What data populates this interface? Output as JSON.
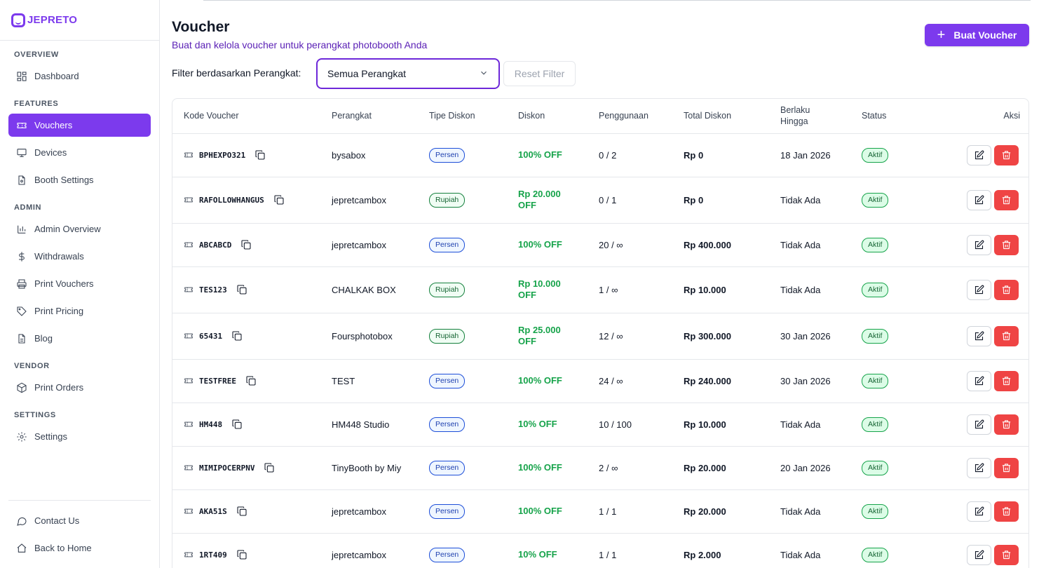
{
  "brand": {
    "name": "JEPRETO",
    "color": "#7c3aed"
  },
  "sidebar": {
    "sections": [
      {
        "title": "OVERVIEW",
        "items": [
          {
            "label": "Dashboard",
            "icon": "dashboard-icon"
          }
        ]
      },
      {
        "title": "FEATURES",
        "items": [
          {
            "label": "Vouchers",
            "icon": "ticket-icon",
            "active": true
          },
          {
            "label": "Devices",
            "icon": "monitor-icon"
          },
          {
            "label": "Booth Settings",
            "icon": "file-settings-icon"
          }
        ]
      },
      {
        "title": "ADMIN",
        "items": [
          {
            "label": "Admin Overview",
            "icon": "bar-chart-icon"
          },
          {
            "label": "Withdrawals",
            "icon": "dollar-icon"
          },
          {
            "label": "Print Vouchers",
            "icon": "printer-icon"
          },
          {
            "label": "Print Pricing",
            "icon": "tag-icon"
          },
          {
            "label": "Blog",
            "icon": "file-text-icon"
          }
        ]
      },
      {
        "title": "VENDOR",
        "items": [
          {
            "label": "Print Orders",
            "icon": "package-icon"
          }
        ]
      },
      {
        "title": "SETTINGS",
        "items": [
          {
            "label": "Settings",
            "icon": "gear-icon"
          }
        ]
      }
    ],
    "bottom": [
      {
        "label": "Contact Us",
        "icon": "chat-icon"
      },
      {
        "label": "Back to Home",
        "icon": "home-icon"
      }
    ]
  },
  "header": {
    "title": "Voucher",
    "subtitle": "Buat dan kelola voucher untuk perangkat photobooth Anda",
    "create_label": "Buat Voucher"
  },
  "filter": {
    "label": "Filter berdasarkan Perangkat:",
    "selected": "Semua Perangkat",
    "reset_label": "Reset Filter"
  },
  "table": {
    "columns": [
      "Kode Voucher",
      "Perangkat",
      "Tipe Diskon",
      "Diskon",
      "Penggunaan",
      "Total Diskon",
      "Berlaku Hingga",
      "Status",
      "Aksi"
    ],
    "rows": [
      {
        "code": "BPHEXPO321",
        "device": "bysabox",
        "type": "Persen",
        "discount": "100% OFF",
        "usage": "0 / 2",
        "total": "Rp 0",
        "valid": "18 Jan 2026",
        "status": "Aktif"
      },
      {
        "code": "RAFOLLOWHANGUS",
        "device": "jepretcambox",
        "type": "Rupiah",
        "discount": "Rp 20.000 OFF",
        "usage": "0 / 1",
        "total": "Rp 0",
        "valid": "Tidak Ada",
        "status": "Aktif"
      },
      {
        "code": "ABCABCD",
        "device": "jepretcambox",
        "type": "Persen",
        "discount": "100% OFF",
        "usage": "20 / ∞",
        "total": "Rp 400.000",
        "valid": "Tidak Ada",
        "status": "Aktif"
      },
      {
        "code": "TES123",
        "device": "CHALKAK BOX",
        "type": "Rupiah",
        "discount": "Rp 10.000 OFF",
        "usage": "1 / ∞",
        "total": "Rp 10.000",
        "valid": "Tidak Ada",
        "status": "Aktif"
      },
      {
        "code": "65431",
        "device": "Foursphotobox",
        "type": "Rupiah",
        "discount": "Rp 25.000 OFF",
        "usage": "12 / ∞",
        "total": "Rp 300.000",
        "valid": "30 Jan 2026",
        "status": "Aktif"
      },
      {
        "code": "TESTFREE",
        "device": "TEST",
        "type": "Persen",
        "discount": "100% OFF",
        "usage": "24 / ∞",
        "total": "Rp 240.000",
        "valid": "30 Jan 2026",
        "status": "Aktif"
      },
      {
        "code": "HM448",
        "device": "HM448 Studio",
        "type": "Persen",
        "discount": "10% OFF",
        "usage": "10 / 100",
        "total": "Rp 10.000",
        "valid": "Tidak Ada",
        "status": "Aktif"
      },
      {
        "code": "MIMIPOCERPNV",
        "device": "TinyBooth by Miy",
        "type": "Persen",
        "discount": "100% OFF",
        "usage": "2 / ∞",
        "total": "Rp 20.000",
        "valid": "20 Jan 2026",
        "status": "Aktif"
      },
      {
        "code": "AKA51S",
        "device": "jepretcambox",
        "type": "Persen",
        "discount": "100% OFF",
        "usage": "1 / 1",
        "total": "Rp 20.000",
        "valid": "Tidak Ada",
        "status": "Aktif"
      },
      {
        "code": "1RT409",
        "device": "jepretcambox",
        "type": "Persen",
        "discount": "10% OFF",
        "usage": "1 / 1",
        "total": "Rp 2.000",
        "valid": "Tidak Ada",
        "status": "Aktif"
      }
    ]
  }
}
